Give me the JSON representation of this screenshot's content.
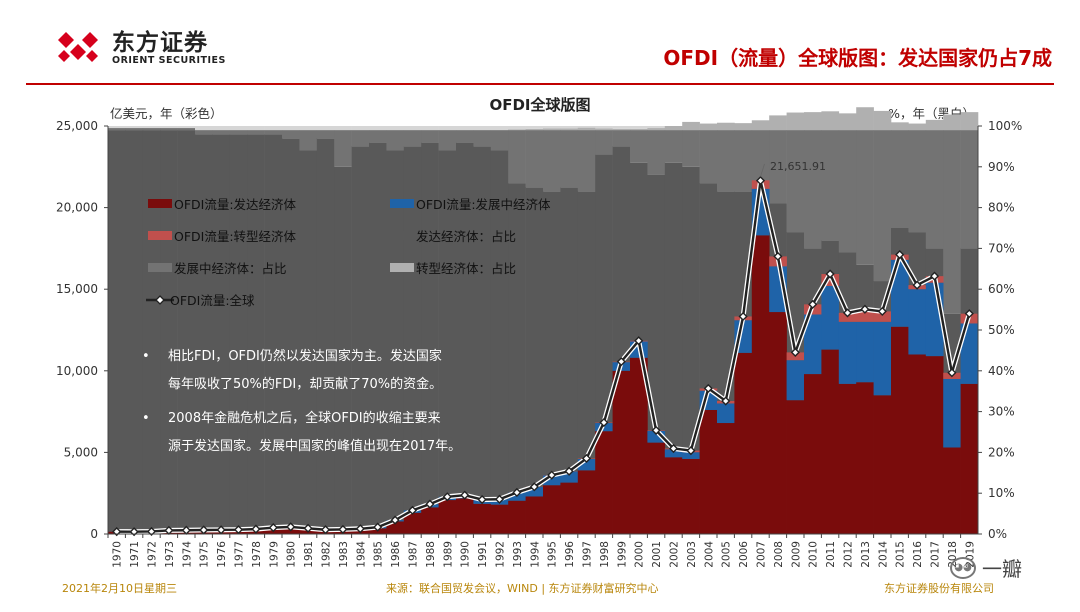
{
  "brand": {
    "name_cn": "东方证券",
    "name_en": "ORIENT SECURITIES"
  },
  "headline": "OFDI（流量）全球版图：发达国家仍占7成",
  "footer": {
    "date": "2021年2月10日星期三",
    "source": "来源：联合国贸发会议，WIND | 东方证券财富研究中心",
    "company": "东方证券股份有限公司"
  },
  "watermark": {
    "text": "一瓣"
  },
  "colors": {
    "developed": "#7a0c0c",
    "developing": "#1f63a8",
    "transition": "#c0504d",
    "share_developed": "#595959",
    "share_developing": "#737373",
    "share_transition": "#b0b0b0",
    "total_line": "#222222",
    "accent": "#c00000"
  },
  "chart_data": {
    "type": "area",
    "title": "OFDI全球版图",
    "y_left_label": "亿美元，年（彩色）",
    "y_right_label": "%，年（黑白）",
    "y_left_ticks": [
      "0",
      "5,000",
      "10,000",
      "15,000",
      "20,000",
      "25,000"
    ],
    "y_right_ticks": [
      "0%",
      "10%",
      "20%",
      "30%",
      "40%",
      "50%",
      "60%",
      "70%",
      "80%",
      "90%",
      "100%"
    ],
    "ylim_left": [
      0,
      25000
    ],
    "ylim_right": [
      0,
      100
    ],
    "x": [
      "1970",
      "1971",
      "1972",
      "1973",
      "1974",
      "1975",
      "1976",
      "1977",
      "1978",
      "1979",
      "1980",
      "1981",
      "1982",
      "1983",
      "1984",
      "1985",
      "1986",
      "1987",
      "1988",
      "1989",
      "1990",
      "1991",
      "1992",
      "1993",
      "1994",
      "1995",
      "1996",
      "1997",
      "1998",
      "1999",
      "2000",
      "2001",
      "2002",
      "2003",
      "2004",
      "2005",
      "2006",
      "2007",
      "2008",
      "2009",
      "2010",
      "2011",
      "2012",
      "2013",
      "2014",
      "2015",
      "2016",
      "2017",
      "2018",
      "2019"
    ],
    "legend": [
      {
        "label": "OFDI流量:发达经济体",
        "color_key": "developed",
        "kind": "box"
      },
      {
        "label": "OFDI流量:发展中经济体",
        "color_key": "developing",
        "kind": "box"
      },
      {
        "label": "OFDI流量:转型经济体",
        "color_key": "transition",
        "kind": "box"
      },
      {
        "label": "发达经济体：占比",
        "color_key": "share_developed",
        "kind": "box"
      },
      {
        "label": "发展中经济体：占比",
        "color_key": "share_developing",
        "kind": "box"
      },
      {
        "label": "转型经济体：占比",
        "color_key": "share_transition",
        "kind": "box"
      },
      {
        "label": "OFDI流量:全球",
        "color_key": "total_line",
        "kind": "line"
      }
    ],
    "annotation": "21,651.91",
    "notes": [
      "相比FDI，OFDI仍然以发达国家为主。发达国家每年吸收了50%的FDI，却贡献了70%的资金。",
      "2008年金融危机之后，全球OFDI的收缩主要来源于发达国家。发展中国家的峰值出现在2017年。"
    ],
    "series": [
      {
        "name": "OFDI流量:发达经济体",
        "axis": "left",
        "values": [
          140,
          135,
          150,
          210,
          220,
          230,
          240,
          250,
          280,
          370,
          410,
          310,
          210,
          230,
          260,
          350,
          770,
          1300,
          1630,
          2080,
          2180,
          1850,
          1800,
          2040,
          2300,
          2990,
          3150,
          3900,
          6300,
          10000,
          10800,
          5600,
          4700,
          4600,
          7600,
          6800,
          11100,
          18300,
          13600,
          8200,
          9800,
          11300,
          9200,
          9300,
          8500,
          12700,
          11000,
          10900,
          5300,
          9200
        ]
      },
      {
        "name": "OFDI流量:发展中经济体",
        "axis": "left",
        "values": [
          5,
          5,
          5,
          10,
          10,
          15,
          15,
          15,
          20,
          20,
          25,
          40,
          50,
          50,
          60,
          70,
          80,
          150,
          200,
          200,
          200,
          260,
          330,
          500,
          580,
          600,
          680,
          700,
          500,
          530,
          1000,
          720,
          490,
          410,
          1180,
          1200,
          2000,
          2850,
          2800,
          2450,
          3650,
          3900,
          3800,
          3700,
          4500,
          4100,
          4000,
          4500,
          4200,
          3700
        ]
      },
      {
        "name": "OFDI流量:转型经济体",
        "axis": "left",
        "values": [
          0,
          0,
          0,
          0,
          0,
          0,
          0,
          0,
          0,
          0,
          0,
          0,
          0,
          0,
          0,
          0,
          0,
          0,
          0,
          0,
          0,
          0,
          0,
          5,
          10,
          15,
          15,
          30,
          30,
          30,
          40,
          30,
          50,
          100,
          140,
          150,
          230,
          520,
          610,
          480,
          620,
          730,
          550,
          770,
          640,
          320,
          250,
          400,
          380,
          600
        ]
      },
      {
        "name": "OFDI流量:全球",
        "axis": "left",
        "values": [
          145,
          140,
          155,
          220,
          230,
          245,
          255,
          265,
          300,
          390,
          435,
          350,
          260,
          280,
          320,
          420,
          850,
          1450,
          1830,
          2280,
          2380,
          2110,
          2130,
          2545,
          2890,
          3605,
          3845,
          4630,
          6830,
          10560,
          11840,
          6350,
          5240,
          5110,
          8920,
          8150,
          13330,
          21651.91,
          17010,
          11130,
          14070,
          15930,
          13550,
          13770,
          13640,
          17120,
          15250,
          15800,
          9880,
          13500
        ]
      },
      {
        "name": "发达经济体：占比",
        "axis": "right",
        "values": [
          99,
          99,
          99,
          99,
          99,
          98,
          98,
          98,
          98,
          98,
          97,
          94,
          97,
          90,
          95,
          96,
          94,
          95,
          96,
          94,
          96,
          95,
          94,
          86,
          85,
          84,
          85,
          84,
          93,
          95,
          91,
          88,
          91,
          90,
          86,
          84,
          84,
          85,
          81,
          74,
          70,
          72,
          69,
          66,
          62,
          75,
          74,
          70,
          54,
          70
        ]
      },
      {
        "name": "发展中经济体：占比",
        "axis": "right",
        "values": [
          0.5,
          0.5,
          0.5,
          0.5,
          0.5,
          1,
          1,
          1,
          1,
          1,
          2,
          5,
          2,
          9,
          4,
          3,
          5,
          4,
          3,
          5,
          3,
          4,
          5,
          13,
          14,
          15,
          14,
          15,
          6,
          4,
          8,
          11,
          8,
          9,
          13,
          15,
          15,
          14,
          18,
          25,
          29,
          27,
          30,
          33,
          37,
          24,
          25,
          29,
          45,
          29
        ]
      },
      {
        "name": "转型经济体：占比",
        "axis": "right",
        "values": [
          0,
          0,
          0,
          0,
          0,
          0,
          0,
          0,
          0,
          0,
          0,
          0,
          0,
          0,
          0,
          0,
          0,
          0,
          0,
          0,
          0,
          0,
          0,
          0.2,
          0.3,
          0.4,
          0.4,
          0.6,
          0.4,
          0.3,
          0.3,
          0.5,
          1,
          2,
          1.6,
          1.8,
          1.7,
          2.4,
          3.6,
          4.3,
          4.4,
          4.6,
          4.1,
          5.6,
          4.7,
          1.9,
          1.6,
          2.5,
          3.8,
          4.4
        ]
      }
    ]
  }
}
